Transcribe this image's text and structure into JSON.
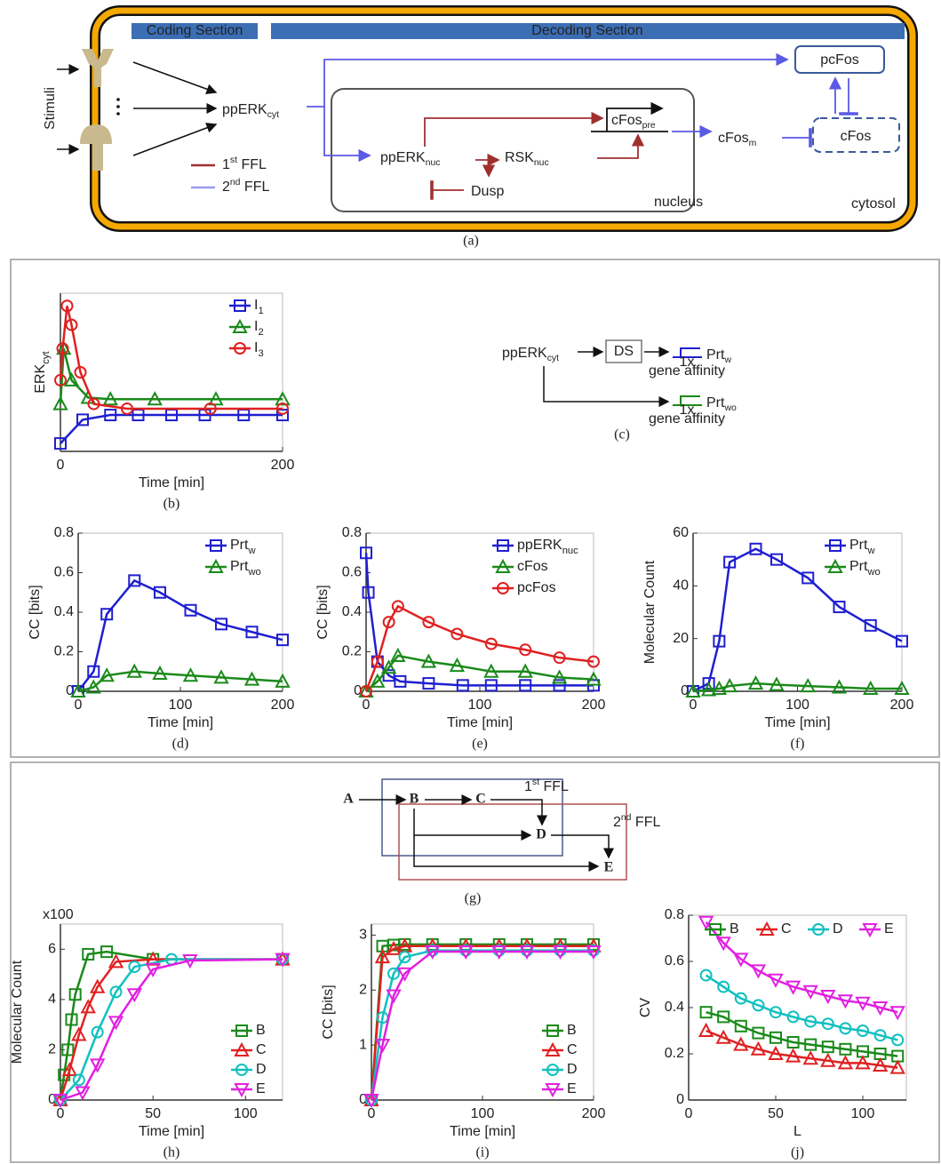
{
  "panel_a": {
    "coding": "Coding Section",
    "decoding": "Decoding Section",
    "stimuli": "Stimuli",
    "ppERK_cyt": {
      "text": "ppERK",
      "sub": "cyt"
    },
    "pcFos": "pcFos",
    "ppERK_nuc": {
      "text": "ppERK",
      "sub": "nuc"
    },
    "RSK_nuc": {
      "text": "RSK",
      "sub": "nuc"
    },
    "dusp": "Dusp",
    "cFos_pre": {
      "text": "cFos",
      "sub": "pre"
    },
    "cFos_m": {
      "text": "cFos",
      "sub": "m"
    },
    "cFos": "cFos",
    "ffl1": {
      "text": "1",
      "sup": "st",
      "rest": " FFL"
    },
    "ffl2": {
      "text": "2",
      "sup": "nd",
      "rest": " FFL"
    },
    "nucleus": "nucleus",
    "cytosol": "cytosol",
    "caption": "(a)"
  },
  "panel_c": {
    "ppERK_cyt": {
      "text": "ppERK",
      "sub": "cyt"
    },
    "ds": "DS",
    "prt_w": {
      "text": "Prt",
      "sub": "w"
    },
    "prt_wo": {
      "text": "Prt",
      "sub": "wo"
    },
    "fold_w": "1x",
    "affinity_w": "gene affinity",
    "fold_wo": "1x",
    "affinity_wo": "gene affinity",
    "caption": "(c)"
  },
  "panel_g": {
    "nodes": [
      "A",
      "B",
      "C",
      "D",
      "E"
    ],
    "ffl1": {
      "text": "1",
      "sup": "st",
      "rest": " FFL"
    },
    "ffl2": {
      "text": "2",
      "sup": "nd",
      "rest": " FFL"
    },
    "caption": "(g)"
  },
  "chart_data": [
    {
      "type": "line",
      "caption": "(b)",
      "xlabel": "Time [min]",
      "ylabel": "ERK",
      "ylabel_subscript": "cyt",
      "xlim": [
        0,
        200
      ],
      "ylim": [
        0,
        1
      ],
      "xticks": [
        0,
        200
      ],
      "legend": "upper right",
      "series": [
        {
          "name": "I",
          "subscript": "1",
          "color": "#1f1fd0",
          "marker": "square",
          "x": [
            0,
            20,
            45,
            70,
            100,
            130,
            165,
            200
          ],
          "values": [
            0.05,
            0.2,
            0.23,
            0.23,
            0.23,
            0.23,
            0.23,
            0.23
          ]
        },
        {
          "name": "I",
          "subscript": "2",
          "color": "#1a8a1a",
          "marker": "triangle",
          "x": [
            0,
            3,
            10,
            25,
            45,
            85,
            140,
            200
          ],
          "values": [
            0.3,
            0.65,
            0.45,
            0.34,
            0.33,
            0.33,
            0.33,
            0.33
          ]
        },
        {
          "name": "I",
          "subscript": "3",
          "color": "#e02020",
          "marker": "circle",
          "x": [
            0,
            2,
            6,
            10,
            18,
            30,
            60,
            135,
            200
          ],
          "values": [
            0.45,
            0.65,
            0.92,
            0.8,
            0.5,
            0.3,
            0.27,
            0.27,
            0.27
          ]
        }
      ]
    },
    {
      "type": "line",
      "caption": "(d)",
      "xlabel": "Time [min]",
      "ylabel": "CC [bits]",
      "xlim": [
        0,
        200
      ],
      "ylim": [
        0,
        0.8
      ],
      "xticks": [
        0,
        100,
        200
      ],
      "yticks": [
        0,
        0.2,
        0.4,
        0.6,
        0.8
      ],
      "legend": "upper right",
      "series": [
        {
          "name": "Prt",
          "subscript": "w",
          "color": "#1f1fd0",
          "marker": "square",
          "x": [
            0,
            15,
            28,
            55,
            80,
            110,
            140,
            170,
            200
          ],
          "values": [
            0,
            0.1,
            0.39,
            0.56,
            0.5,
            0.41,
            0.34,
            0.3,
            0.26
          ]
        },
        {
          "name": "Prt",
          "subscript": "wo",
          "color": "#1a8a1a",
          "marker": "triangle",
          "x": [
            0,
            15,
            28,
            55,
            80,
            110,
            140,
            170,
            200
          ],
          "values": [
            0,
            0.02,
            0.08,
            0.1,
            0.09,
            0.08,
            0.07,
            0.06,
            0.05
          ]
        }
      ]
    },
    {
      "type": "line",
      "caption": "(e)",
      "xlabel": "Time [min]",
      "ylabel": "CC [bits]",
      "xlim": [
        0,
        200
      ],
      "ylim": [
        0,
        0.8
      ],
      "xticks": [
        0,
        100,
        200
      ],
      "yticks": [
        0,
        0.2,
        0.4,
        0.6,
        0.8
      ],
      "legend": "upper right",
      "series": [
        {
          "name": "ppERK",
          "subscript": "nuc",
          "color": "#1f1fd0",
          "marker": "square",
          "x": [
            0,
            2,
            10,
            20,
            30,
            55,
            85,
            110,
            140,
            170,
            200
          ],
          "values": [
            0.7,
            0.5,
            0.15,
            0.08,
            0.05,
            0.04,
            0.03,
            0.03,
            0.03,
            0.03,
            0.03
          ]
        },
        {
          "name": "cFos",
          "color": "#1a8a1a",
          "marker": "triangle",
          "x": [
            0,
            10,
            20,
            28,
            55,
            80,
            110,
            140,
            170,
            200
          ],
          "values": [
            0,
            0.05,
            0.12,
            0.18,
            0.15,
            0.13,
            0.1,
            0.1,
            0.07,
            0.06
          ]
        },
        {
          "name": "pcFos",
          "color": "#e02020",
          "marker": "circle",
          "x": [
            0,
            10,
            20,
            28,
            55,
            80,
            110,
            140,
            170,
            200
          ],
          "values": [
            0,
            0.15,
            0.35,
            0.43,
            0.35,
            0.29,
            0.24,
            0.21,
            0.17,
            0.15
          ]
        }
      ]
    },
    {
      "type": "line",
      "caption": "(f)",
      "xlabel": "Time [min]",
      "ylabel": "Molecular Count",
      "xlim": [
        0,
        200
      ],
      "ylim": [
        0,
        60
      ],
      "xticks": [
        0,
        100,
        200
      ],
      "yticks": [
        0,
        20,
        40,
        60
      ],
      "legend": "upper right",
      "series": [
        {
          "name": "Prt",
          "subscript": "w",
          "color": "#1f1fd0",
          "marker": "square",
          "x": [
            0,
            15,
            25,
            35,
            60,
            80,
            110,
            140,
            170,
            200
          ],
          "values": [
            0,
            3,
            19,
            49,
            54,
            50,
            43,
            32,
            25,
            19
          ]
        },
        {
          "name": "Prt",
          "subscript": "wo",
          "color": "#1a8a1a",
          "marker": "triangle",
          "x": [
            0,
            15,
            25,
            35,
            60,
            80,
            110,
            140,
            170,
            200
          ],
          "values": [
            0,
            0.5,
            1,
            2,
            3,
            2.5,
            2,
            1.5,
            1,
            1
          ]
        }
      ]
    },
    {
      "type": "line",
      "caption": "(h)",
      "xlabel": "Time [min]",
      "ylabel": "Molecular Count",
      "annotation": "x100",
      "xlim": [
        0,
        120
      ],
      "ylim": [
        0,
        7
      ],
      "xticks": [
        0,
        50,
        100
      ],
      "yticks": [
        0,
        2,
        4,
        6
      ],
      "legend": "lower right",
      "series": [
        {
          "name": "B",
          "color": "#1a8a1a",
          "marker": "square",
          "x": [
            0,
            2,
            4,
            6,
            8,
            15,
            25,
            50,
            120
          ],
          "values": [
            0,
            1,
            2,
            3.2,
            4.2,
            5.8,
            5.9,
            5.6,
            5.6
          ]
        },
        {
          "name": "C",
          "color": "#e02020",
          "marker": "triangle",
          "x": [
            0,
            5,
            10,
            15,
            20,
            30,
            50,
            120
          ],
          "values": [
            0,
            1.2,
            2.6,
            3.7,
            4.5,
            5.5,
            5.6,
            5.6
          ]
        },
        {
          "name": "D",
          "color": "#10c0c0",
          "marker": "circle",
          "x": [
            0,
            10,
            20,
            30,
            40,
            60,
            120
          ],
          "values": [
            0,
            0.8,
            2.7,
            4.3,
            5.3,
            5.6,
            5.6
          ]
        },
        {
          "name": "E",
          "color": "#e020e0",
          "marker": "triangle-down",
          "x": [
            0,
            12,
            20,
            30,
            40,
            50,
            70,
            120
          ],
          "values": [
            0,
            0.3,
            1.4,
            3.1,
            4.2,
            5.2,
            5.55,
            5.6
          ]
        }
      ]
    },
    {
      "type": "line",
      "caption": "(i)",
      "xlabel": "Time [min]",
      "ylabel": "CC [bits]",
      "xlim": [
        0,
        200
      ],
      "ylim": [
        0,
        3.2
      ],
      "xticks": [
        0,
        100,
        200
      ],
      "yticks": [
        0,
        1,
        2,
        3
      ],
      "legend": "lower right",
      "series": [
        {
          "name": "B",
          "color": "#1a8a1a",
          "marker": "square",
          "x": [
            0,
            10,
            20,
            30,
            55,
            85,
            115,
            140,
            170,
            200
          ],
          "values": [
            0,
            2.8,
            2.82,
            2.83,
            2.83,
            2.83,
            2.83,
            2.83,
            2.83,
            2.83
          ]
        },
        {
          "name": "C",
          "color": "#e02020",
          "marker": "triangle",
          "x": [
            0,
            10,
            20,
            30,
            55,
            85,
            115,
            140,
            170,
            200
          ],
          "values": [
            0,
            2.6,
            2.75,
            2.8,
            2.8,
            2.8,
            2.8,
            2.8,
            2.8,
            2.8
          ]
        },
        {
          "name": "D",
          "color": "#10c0c0",
          "marker": "circle",
          "x": [
            0,
            10,
            20,
            30,
            55,
            85,
            115,
            140,
            170,
            200
          ],
          "values": [
            0,
            1.5,
            2.3,
            2.6,
            2.72,
            2.72,
            2.72,
            2.72,
            2.72,
            2.72
          ]
        },
        {
          "name": "E",
          "color": "#e020e0",
          "marker": "triangle-down",
          "x": [
            0,
            10,
            20,
            30,
            55,
            85,
            115,
            140,
            170,
            200
          ],
          "values": [
            0,
            1,
            1.9,
            2.3,
            2.7,
            2.7,
            2.7,
            2.7,
            2.7,
            2.7
          ]
        }
      ]
    },
    {
      "type": "line",
      "caption": "(j)",
      "xlabel": "L",
      "ylabel": "CV",
      "xlim": [
        0,
        125
      ],
      "ylim": [
        0,
        0.8
      ],
      "xticks": [
        0,
        50,
        100
      ],
      "yticks": [
        0,
        0.2,
        0.4,
        0.6,
        0.8
      ],
      "legend": "top",
      "series": [
        {
          "name": "B",
          "color": "#1a8a1a",
          "marker": "square",
          "x": [
            10,
            20,
            30,
            40,
            50,
            60,
            70,
            80,
            90,
            100,
            110,
            120
          ],
          "values": [
            0.38,
            0.36,
            0.32,
            0.29,
            0.27,
            0.25,
            0.24,
            0.23,
            0.22,
            0.21,
            0.2,
            0.19
          ]
        },
        {
          "name": "C",
          "color": "#e02020",
          "marker": "triangle",
          "x": [
            10,
            20,
            30,
            40,
            50,
            60,
            70,
            80,
            90,
            100,
            110,
            120
          ],
          "values": [
            0.3,
            0.27,
            0.24,
            0.22,
            0.2,
            0.19,
            0.18,
            0.17,
            0.16,
            0.16,
            0.15,
            0.14
          ]
        },
        {
          "name": "D",
          "color": "#10c0c0",
          "marker": "circle",
          "x": [
            10,
            20,
            30,
            40,
            50,
            60,
            70,
            80,
            90,
            100,
            110,
            120
          ],
          "values": [
            0.54,
            0.49,
            0.44,
            0.41,
            0.38,
            0.36,
            0.34,
            0.33,
            0.31,
            0.3,
            0.28,
            0.26
          ]
        },
        {
          "name": "E",
          "color": "#e020e0",
          "marker": "triangle-down",
          "x": [
            10,
            20,
            30,
            40,
            50,
            60,
            70,
            80,
            90,
            100,
            110,
            120
          ],
          "values": [
            0.77,
            0.68,
            0.61,
            0.56,
            0.52,
            0.49,
            0.47,
            0.45,
            0.43,
            0.42,
            0.4,
            0.38
          ]
        }
      ]
    }
  ]
}
